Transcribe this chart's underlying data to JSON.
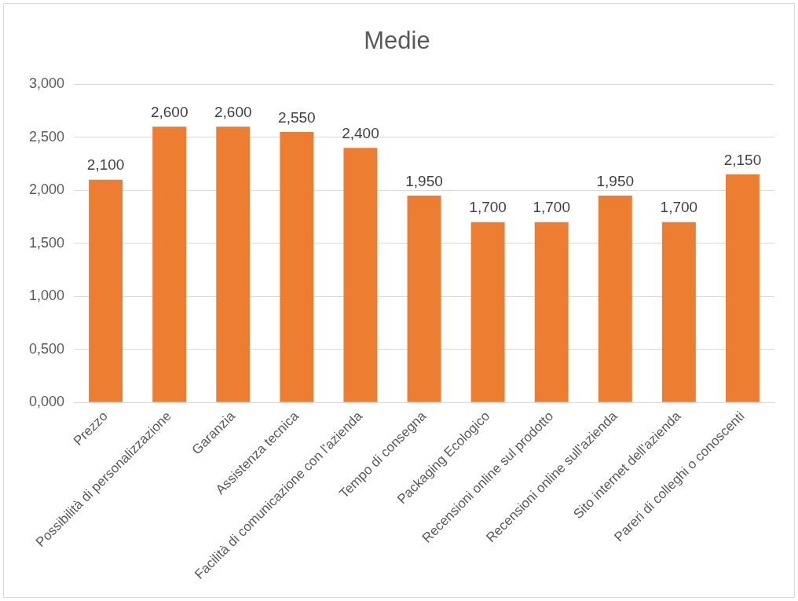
{
  "chart_data": {
    "type": "bar",
    "title": "Medie",
    "categories": [
      "Prezzo",
      "Possibilità di personalizzazione",
      "Garanzia",
      "Assistenza tecnica",
      "Facilità di comunicazione con l'azienda",
      "Tempo di consegna",
      "Packaging Ecologico",
      "Recensioni online sul prodotto",
      "Recensioni online sull'azienda",
      "Sito internet dell'azienda",
      "Pareri di colleghi o conoscenti"
    ],
    "values": [
      2.1,
      2.6,
      2.6,
      2.55,
      2.4,
      1.95,
      1.7,
      1.7,
      1.95,
      1.7,
      2.15
    ],
    "value_labels": [
      "2,100",
      "2,600",
      "2,600",
      "2,550",
      "2,400",
      "1,950",
      "1,700",
      "1,700",
      "1,950",
      "1,700",
      "2,150"
    ],
    "color": "#ed7d31",
    "ylim": [
      0,
      3
    ],
    "yticks": [
      {
        "value": 0,
        "label": "0,000"
      },
      {
        "value": 0.5,
        "label": "0,500"
      },
      {
        "value": 1,
        "label": "1,000"
      },
      {
        "value": 1.5,
        "label": "1,500"
      },
      {
        "value": 2,
        "label": "2,000"
      },
      {
        "value": 2.5,
        "label": "2,500"
      },
      {
        "value": 3,
        "label": "3,000"
      }
    ],
    "grid": "y",
    "legend": false
  }
}
